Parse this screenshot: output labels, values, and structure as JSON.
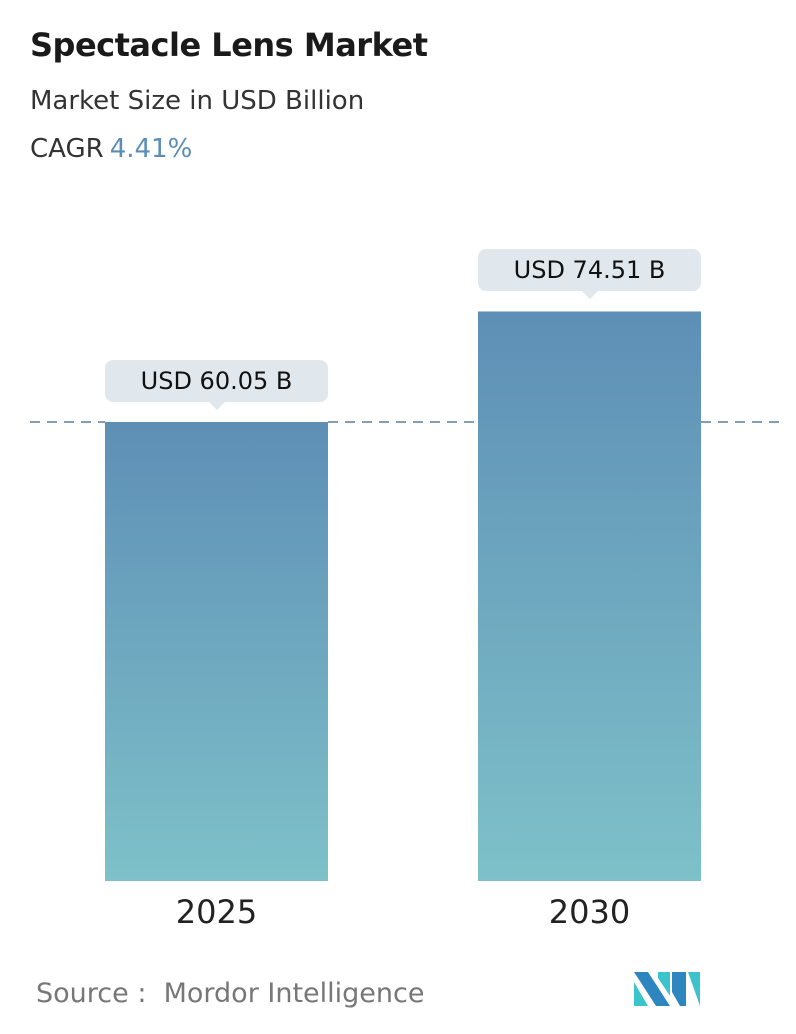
{
  "header": {
    "title": "Spectacle Lens Market",
    "subtitle": "Market Size in USD Billion",
    "cagr_label": "CAGR",
    "cagr_value": "4.41%"
  },
  "chart_data": {
    "type": "bar",
    "title": "Spectacle Lens Market",
    "subtitle": "Market Size in USD Billion",
    "categories": [
      "2025",
      "2030"
    ],
    "values": [
      60.05,
      74.51
    ],
    "data_labels": [
      "USD 60.05 B",
      "USD 74.51 B"
    ],
    "ylim": [
      0,
      80
    ],
    "grid": false,
    "reference_line": 60.05,
    "colors": {
      "bar_top": "#5e8fb6",
      "bar_bottom": "#7ec1c9",
      "accent": "#5b8db6",
      "dashed_line": "#5d7f99"
    }
  },
  "footer": {
    "source_label": "Source :",
    "source_name": "Mordor Intelligence",
    "logo_text": "MI"
  }
}
